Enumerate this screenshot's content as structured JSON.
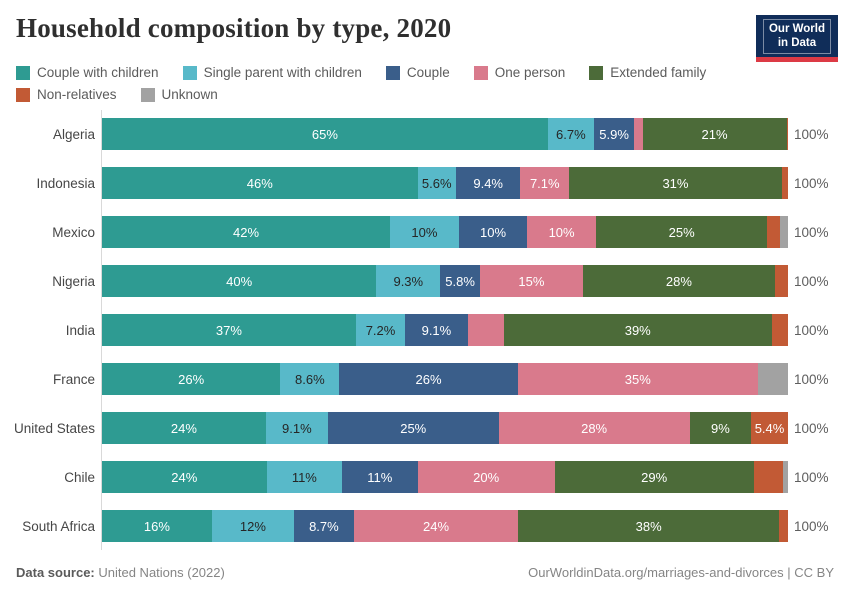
{
  "header": {
    "title": "Household composition by type, 2020",
    "logo": {
      "line1": "Our World",
      "line2": "in Data"
    }
  },
  "footer": {
    "datasource_prefix": "Data source:",
    "datasource_text": " United Nations (2022)",
    "credit": "OurWorldinData.org/marriages-and-divorces | CC BY"
  },
  "chart_data": {
    "type": "bar",
    "stacked": true,
    "orientation": "horizontal",
    "title": "Household composition by type, 2020",
    "xlim": [
      0,
      100
    ],
    "unit": "%",
    "grid": false,
    "legend_position": "top",
    "series": [
      {
        "name": "Couple with children",
        "color": "#2E9B92",
        "text_color": "#ffffff"
      },
      {
        "name": "Single parent with children",
        "color": "#58B9C9",
        "text_color": "#262626"
      },
      {
        "name": "Couple",
        "color": "#3A5E8A",
        "text_color": "#ffffff"
      },
      {
        "name": "One person",
        "color": "#D97A8C",
        "text_color": "#ffffff"
      },
      {
        "name": "Extended family",
        "color": "#4C6B39",
        "text_color": "#ffffff"
      },
      {
        "name": "Non-relatives",
        "color": "#C25A35",
        "text_color": "#ffffff"
      },
      {
        "name": "Unknown",
        "color": "#A2A2A2",
        "text_color": "#ffffff"
      }
    ],
    "rows": [
      {
        "country": "Algeria",
        "total_label": "100%",
        "segments": [
          {
            "series": "Couple with children",
            "value": 65,
            "label": "65%"
          },
          {
            "series": "Single parent with children",
            "value": 6.7,
            "label": "6.7%"
          },
          {
            "series": "Couple",
            "value": 5.9,
            "label": "5.9%"
          },
          {
            "series": "One person",
            "value": 1.2,
            "label": null
          },
          {
            "series": "Extended family",
            "value": 21,
            "label": "21%"
          },
          {
            "series": "Non-relatives",
            "value": 0.2,
            "label": null
          }
        ]
      },
      {
        "country": "Indonesia",
        "total_label": "100%",
        "segments": [
          {
            "series": "Couple with children",
            "value": 46,
            "label": "46%"
          },
          {
            "series": "Single parent with children",
            "value": 5.6,
            "label": "5.6%"
          },
          {
            "series": "Couple",
            "value": 9.4,
            "label": "9.4%"
          },
          {
            "series": "One person",
            "value": 7.1,
            "label": "7.1%"
          },
          {
            "series": "Extended family",
            "value": 31,
            "label": "31%"
          },
          {
            "series": "Non-relatives",
            "value": 0.9,
            "label": null
          }
        ]
      },
      {
        "country": "Mexico",
        "total_label": "100%",
        "segments": [
          {
            "series": "Couple with children",
            "value": 42,
            "label": "42%"
          },
          {
            "series": "Single parent with children",
            "value": 10,
            "label": "10%"
          },
          {
            "series": "Couple",
            "value": 10,
            "label": "10%"
          },
          {
            "series": "One person",
            "value": 10,
            "label": "10%"
          },
          {
            "series": "Extended family",
            "value": 25,
            "label": "25%"
          },
          {
            "series": "Non-relatives",
            "value": 1.8,
            "label": null
          },
          {
            "series": "Unknown",
            "value": 1.2,
            "label": null
          }
        ]
      },
      {
        "country": "Nigeria",
        "total_label": "100%",
        "segments": [
          {
            "series": "Couple with children",
            "value": 40,
            "label": "40%"
          },
          {
            "series": "Single parent with children",
            "value": 9.3,
            "label": "9.3%"
          },
          {
            "series": "Couple",
            "value": 5.8,
            "label": "5.8%"
          },
          {
            "series": "One person",
            "value": 15,
            "label": "15%"
          },
          {
            "series": "Extended family",
            "value": 28,
            "label": "28%"
          },
          {
            "series": "Non-relatives",
            "value": 1.9,
            "label": null
          }
        ]
      },
      {
        "country": "India",
        "total_label": "100%",
        "segments": [
          {
            "series": "Couple with children",
            "value": 37,
            "label": "37%"
          },
          {
            "series": "Single parent with children",
            "value": 7.2,
            "label": "7.2%"
          },
          {
            "series": "Couple",
            "value": 9.1,
            "label": "9.1%"
          },
          {
            "series": "One person",
            "value": 5.3,
            "label": null
          },
          {
            "series": "Extended family",
            "value": 39,
            "label": "39%"
          },
          {
            "series": "Non-relatives",
            "value": 2.4,
            "label": null
          }
        ]
      },
      {
        "country": "France",
        "total_label": "100%",
        "segments": [
          {
            "series": "Couple with children",
            "value": 26,
            "label": "26%"
          },
          {
            "series": "Single parent with children",
            "value": 8.6,
            "label": "8.6%"
          },
          {
            "series": "Couple",
            "value": 26,
            "label": "26%"
          },
          {
            "series": "One person",
            "value": 35,
            "label": "35%"
          },
          {
            "series": "Unknown",
            "value": 4.4,
            "label": null
          }
        ]
      },
      {
        "country": "United States",
        "total_label": "100%",
        "segments": [
          {
            "series": "Couple with children",
            "value": 24,
            "label": "24%"
          },
          {
            "series": "Single parent with children",
            "value": 9.1,
            "label": "9.1%"
          },
          {
            "series": "Couple",
            "value": 25,
            "label": "25%"
          },
          {
            "series": "One person",
            "value": 28,
            "label": "28%"
          },
          {
            "series": "Extended family",
            "value": 9,
            "label": "9%"
          },
          {
            "series": "Non-relatives",
            "value": 5.4,
            "label": "5.4%"
          }
        ]
      },
      {
        "country": "Chile",
        "total_label": "100%",
        "segments": [
          {
            "series": "Couple with children",
            "value": 24,
            "label": "24%"
          },
          {
            "series": "Single parent with children",
            "value": 11,
            "label": "11%"
          },
          {
            "series": "Couple",
            "value": 11,
            "label": "11%"
          },
          {
            "series": "One person",
            "value": 20,
            "label": "20%"
          },
          {
            "series": "Extended family",
            "value": 29,
            "label": "29%"
          },
          {
            "series": "Non-relatives",
            "value": 4.3,
            "label": null
          },
          {
            "series": "Unknown",
            "value": 0.7,
            "label": null
          }
        ]
      },
      {
        "country": "South Africa",
        "total_label": "100%",
        "segments": [
          {
            "series": "Couple with children",
            "value": 16,
            "label": "16%"
          },
          {
            "series": "Single parent with children",
            "value": 12,
            "label": "12%"
          },
          {
            "series": "Couple",
            "value": 8.7,
            "label": "8.7%"
          },
          {
            "series": "One person",
            "value": 24,
            "label": "24%"
          },
          {
            "series": "Extended family",
            "value": 38,
            "label": "38%"
          },
          {
            "series": "Non-relatives",
            "value": 1.3,
            "label": null
          }
        ]
      }
    ]
  }
}
